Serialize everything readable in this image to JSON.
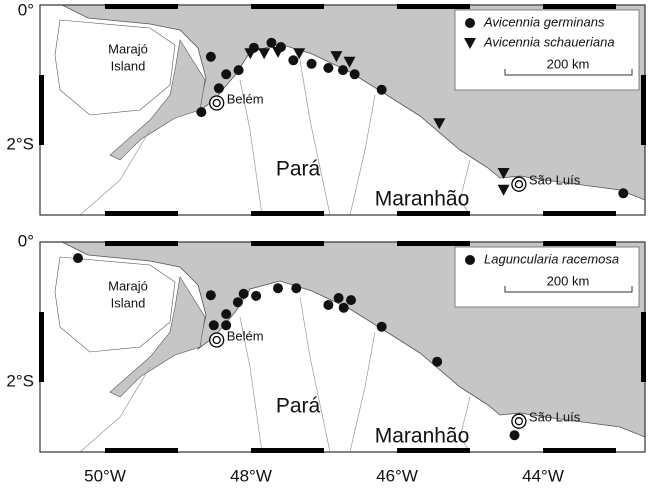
{
  "lat_ticks": [
    {
      "value": 0,
      "label": "0°"
    },
    {
      "value": -2,
      "label": "2°S"
    }
  ],
  "lon_ticks": [
    {
      "value": -50,
      "label": "50°W"
    },
    {
      "value": -48,
      "label": "48°W"
    },
    {
      "value": -46,
      "label": "46°W"
    },
    {
      "value": -44,
      "label": "44°W"
    }
  ],
  "place_labels": {
    "marajo": [
      "Marajó",
      "Island"
    ],
    "para": "Pará",
    "maranhao": "Maranhão"
  },
  "cities": [
    {
      "name": "Belém",
      "lon": -48.47,
      "lat": -1.4
    },
    {
      "name": "São Luís",
      "lon": -44.33,
      "lat": -2.56
    }
  ],
  "panels": [
    {
      "scale_label": "200 km",
      "series": [
        {
          "name": "Avicennia germinans",
          "symbol": "circle",
          "points": [
            [
              -48.55,
              -0.74
            ],
            [
              -48.44,
              -1.19
            ],
            [
              -48.34,
              -0.99
            ],
            [
              -48.17,
              -0.93
            ],
            [
              -48.68,
              -1.53
            ],
            [
              -47.96,
              -0.61
            ],
            [
              -47.72,
              -0.54
            ],
            [
              -47.59,
              -0.6
            ],
            [
              -47.42,
              -0.79
            ],
            [
              -47.17,
              -0.84
            ],
            [
              -46.94,
              -0.9
            ],
            [
              -46.74,
              -0.93
            ],
            [
              -46.58,
              -0.99
            ],
            [
              -46.21,
              -1.21
            ],
            [
              -42.9,
              -2.69
            ]
          ]
        },
        {
          "name": "Avicennia schaueriana",
          "symbol": "triangle",
          "points": [
            [
              -48.01,
              -0.69
            ],
            [
              -47.82,
              -0.69
            ],
            [
              -47.63,
              -0.67
            ],
            [
              -47.34,
              -0.69
            ],
            [
              -46.83,
              -0.73
            ],
            [
              -46.65,
              -0.81
            ],
            [
              -45.42,
              -1.69
            ],
            [
              -44.54,
              -2.4
            ],
            [
              -44.54,
              -2.64
            ]
          ]
        }
      ]
    },
    {
      "scale_label": "200 km",
      "series": [
        {
          "name": "Laguncularia racemosa",
          "symbol": "circle",
          "points": [
            [
              -50.37,
              -0.23
            ],
            [
              -48.55,
              -0.76
            ],
            [
              -48.51,
              -1.19
            ],
            [
              -48.34,
              -1.19
            ],
            [
              -48.34,
              -1.03
            ],
            [
              -48.18,
              -0.86
            ],
            [
              -48.1,
              -0.74
            ],
            [
              -47.93,
              -0.77
            ],
            [
              -47.63,
              -0.66
            ],
            [
              -47.38,
              -0.66
            ],
            [
              -46.94,
              -0.9
            ],
            [
              -46.8,
              -0.8
            ],
            [
              -46.73,
              -0.94
            ],
            [
              -46.63,
              -0.83
            ],
            [
              -46.21,
              -1.21
            ],
            [
              -45.45,
              -1.71
            ],
            [
              -44.39,
              -2.76
            ]
          ]
        }
      ]
    }
  ]
}
